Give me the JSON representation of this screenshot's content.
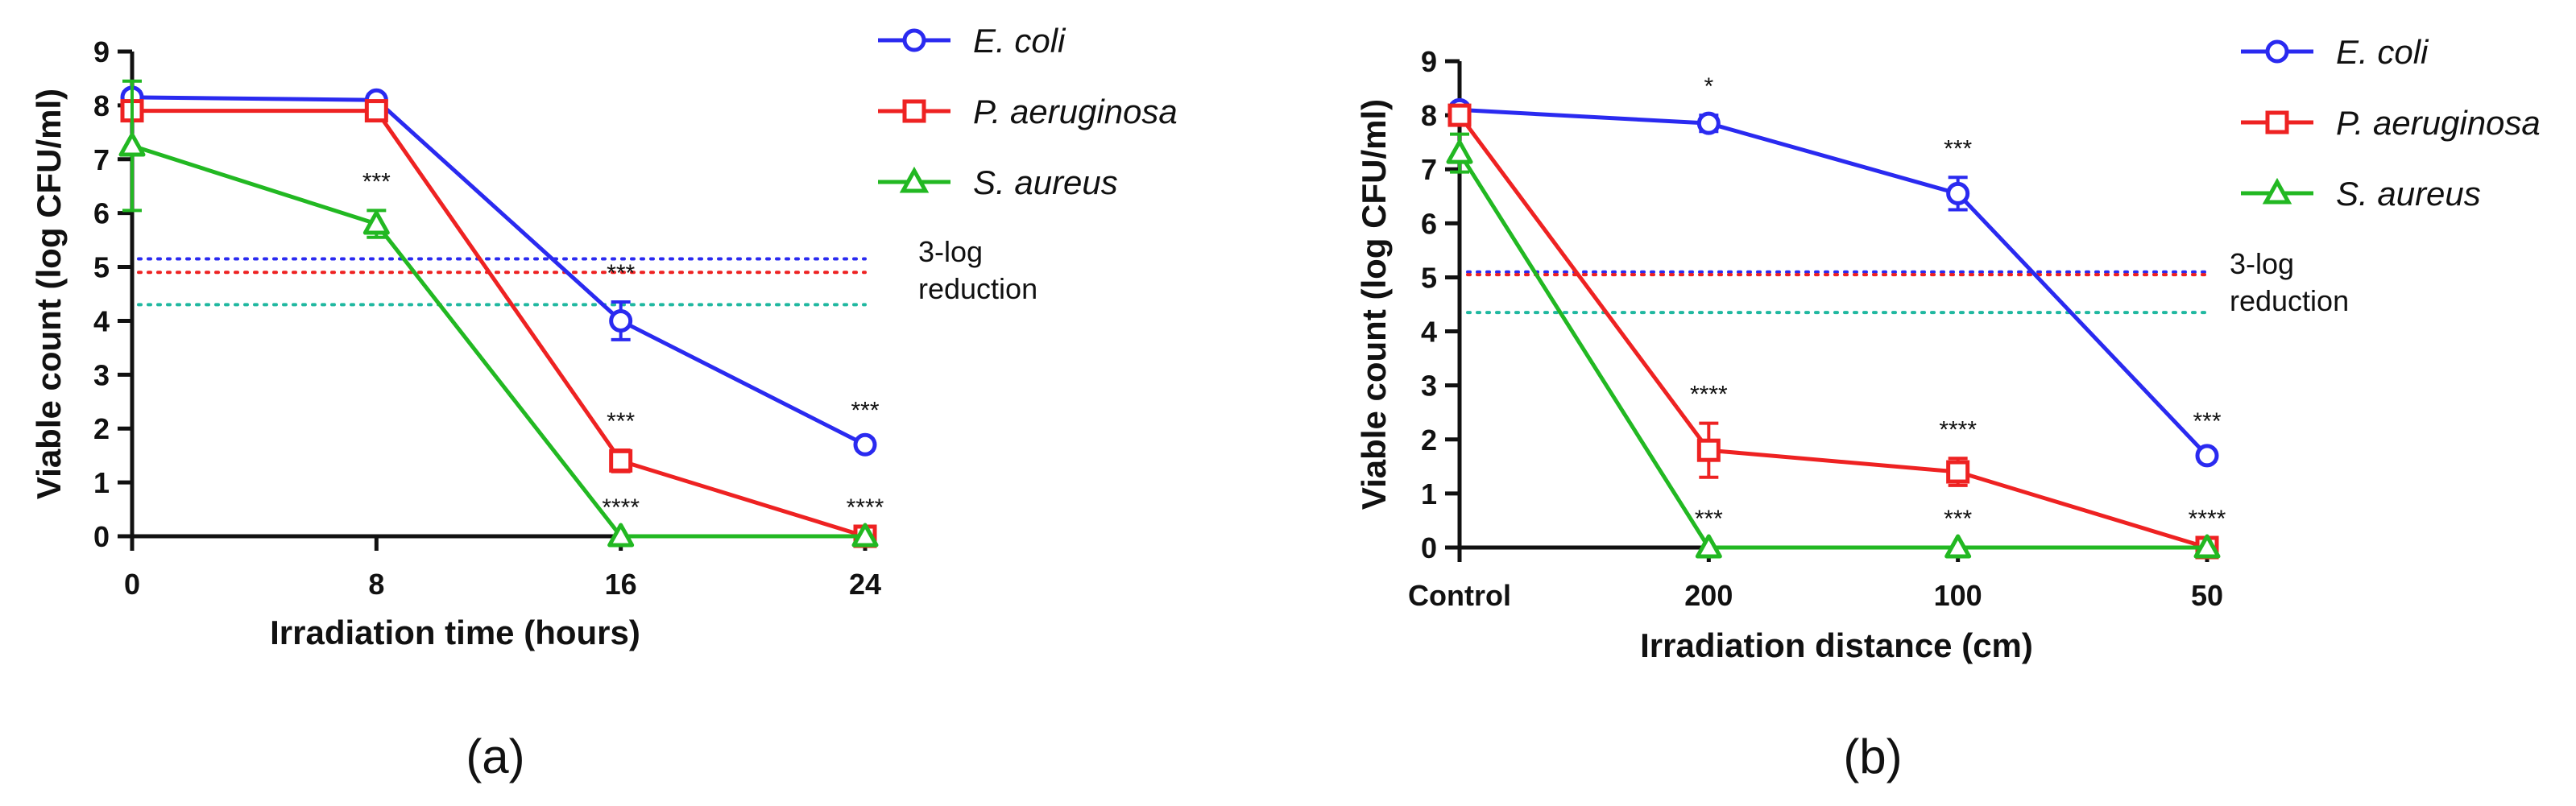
{
  "chart_data": [
    {
      "type": "line",
      "panel_label": "(a)",
      "xlabel": "Irradiation time (hours)",
      "ylabel": "Viable count (log CFU/ml)",
      "categories": [
        "0",
        "8",
        "16",
        "24"
      ],
      "ylim": [
        0,
        9
      ],
      "yticks": [
        0,
        1,
        2,
        3,
        4,
        5,
        6,
        7,
        8,
        9
      ],
      "legend_position": "top-right",
      "series": [
        {
          "name": "E. coli",
          "color": "#2a2af0",
          "marker": "circle",
          "values": [
            8.15,
            8.1,
            4.0,
            1.7
          ],
          "errors": [
            0.1,
            0.1,
            0.35,
            0.1
          ],
          "annotations": [
            "",
            "",
            "***",
            "***"
          ]
        },
        {
          "name": "P. aeruginosa",
          "color": "#ee2222",
          "marker": "square",
          "values": [
            7.9,
            7.9,
            1.4,
            0.0
          ],
          "errors": [
            0.1,
            0.1,
            0.2,
            0.05
          ],
          "annotations": [
            "",
            "",
            "***",
            "****"
          ]
        },
        {
          "name": "S. aureus",
          "color": "#22b822",
          "marker": "triangle",
          "values": [
            7.25,
            5.8,
            0.0,
            0.0
          ],
          "errors": [
            1.2,
            0.25,
            0.05,
            0.05
          ],
          "annotations": [
            "",
            "***",
            "****",
            ""
          ]
        }
      ],
      "reference_lines": [
        {
          "color": "#2a2af0",
          "y": 5.15
        },
        {
          "color": "#ee2222",
          "y": 4.9
        },
        {
          "color": "#20b8a0",
          "y": 4.3
        }
      ],
      "reference_label": [
        "3-log",
        "reduction"
      ]
    },
    {
      "type": "line",
      "panel_label": "(b)",
      "xlabel": "Irradiation distance (cm)",
      "ylabel": "Viable count (log CFU/ml)",
      "categories": [
        "Control",
        "200",
        "100",
        "50"
      ],
      "ylim": [
        0,
        9
      ],
      "yticks": [
        0,
        1,
        2,
        3,
        4,
        5,
        6,
        7,
        8,
        9
      ],
      "legend_position": "top-right",
      "series": [
        {
          "name": "E. coli",
          "color": "#2a2af0",
          "marker": "circle",
          "values": [
            8.1,
            7.85,
            6.55,
            1.7
          ],
          "errors": [
            0.1,
            0.15,
            0.3,
            0.1
          ],
          "annotations": [
            "",
            "*",
            "***",
            "***"
          ]
        },
        {
          "name": "P. aeruginosa",
          "color": "#ee2222",
          "marker": "square",
          "values": [
            8.0,
            1.8,
            1.4,
            0.0
          ],
          "errors": [
            0.1,
            0.5,
            0.25,
            0.05
          ],
          "annotations": [
            "",
            "****",
            "****",
            "****"
          ]
        },
        {
          "name": "S. aureus",
          "color": "#22b822",
          "marker": "triangle",
          "values": [
            7.3,
            0.0,
            0.0,
            0.0
          ],
          "errors": [
            0.35,
            0.05,
            0.05,
            0.05
          ],
          "annotations": [
            "",
            "***",
            "***",
            ""
          ]
        }
      ],
      "reference_lines": [
        {
          "color": "#2a2af0",
          "y": 5.1
        },
        {
          "color": "#ee2222",
          "y": 5.05
        },
        {
          "color": "#20b8a0",
          "y": 4.35
        }
      ],
      "reference_label": [
        "3-log",
        "reduction"
      ]
    }
  ]
}
